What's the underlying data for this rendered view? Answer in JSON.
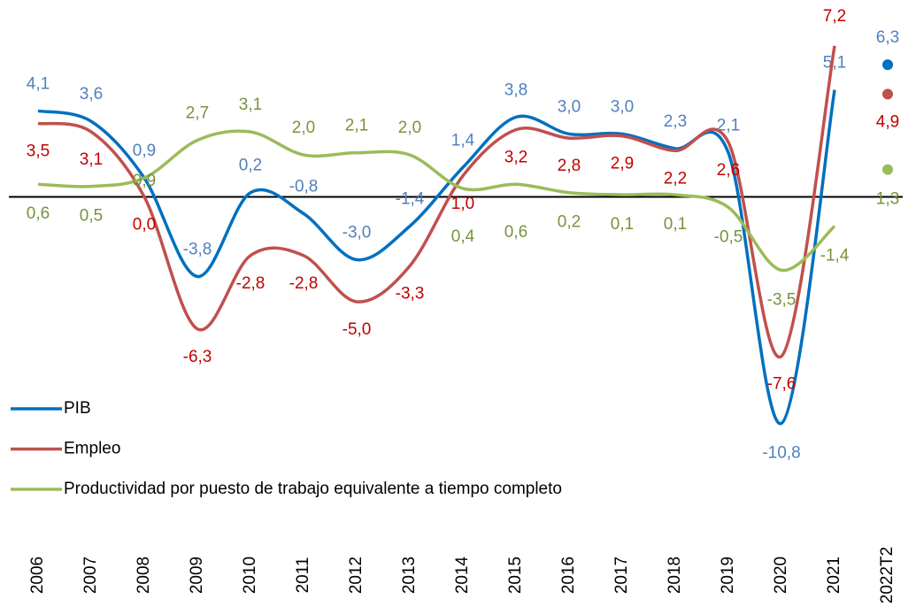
{
  "chart_data": {
    "type": "line",
    "categories": [
      "2006",
      "2007",
      "2008",
      "2009",
      "2010",
      "2011",
      "2012",
      "2013",
      "2014",
      "2015",
      "2016",
      "2017",
      "2018",
      "2019",
      "2020",
      "2021",
      "2022T2"
    ],
    "ylim": [
      -11.5,
      8.5
    ],
    "series": [
      {
        "name": "PIB",
        "color": "#0070c0",
        "label_color": "#4f81bd",
        "values": [
          4.1,
          3.6,
          0.9,
          -3.8,
          0.2,
          -0.8,
          -3.0,
          -1.4,
          1.4,
          3.8,
          3.0,
          3.0,
          2.3,
          2.1,
          -10.8,
          5.1,
          6.3
        ],
        "value_labels": [
          "4,1",
          "3,6",
          "0,9",
          "-3,8",
          "0,2",
          "-0,8",
          "-3,0",
          "-1,4",
          "1,4",
          "3,8",
          "3,0",
          "3,0",
          "2,3",
          "2,1",
          "-10,8",
          "5,1",
          "6,3"
        ]
      },
      {
        "name": "Empleo",
        "color": "#c0504d",
        "label_color": "#c00000",
        "values": [
          3.5,
          3.1,
          0.0,
          -6.3,
          -2.8,
          -2.8,
          -5.0,
          -3.3,
          1.0,
          3.2,
          2.8,
          2.9,
          2.2,
          2.6,
          -7.6,
          7.2,
          4.9
        ],
        "value_labels": [
          "3,5",
          "3,1",
          "0,0",
          "-6,3",
          "-2,8",
          "-2,8",
          "-5,0",
          "-3,3",
          "1,0",
          "3,2",
          "2,8",
          "2,9",
          "2,2",
          "2,6",
          "-7,6",
          "7,2",
          "4,9"
        ]
      },
      {
        "name": "Productividad por puesto de trabajo equivalente a tiempo completo",
        "color": "#9bbb59",
        "label_color": "#77933c",
        "values": [
          0.6,
          0.5,
          0.9,
          2.7,
          3.1,
          2.0,
          2.1,
          2.0,
          0.4,
          0.6,
          0.2,
          0.1,
          0.1,
          -0.5,
          -3.5,
          -1.4,
          1.3
        ],
        "value_labels": [
          "0,6",
          "0,5",
          "0,9",
          "2,7",
          "3,1",
          "2,0",
          "2,1",
          "2,0",
          "0,4",
          "0,6",
          "0,2",
          "0,1",
          "0,1",
          "-0,5",
          "-3,5",
          "-1,4",
          "1,3"
        ]
      }
    ]
  }
}
